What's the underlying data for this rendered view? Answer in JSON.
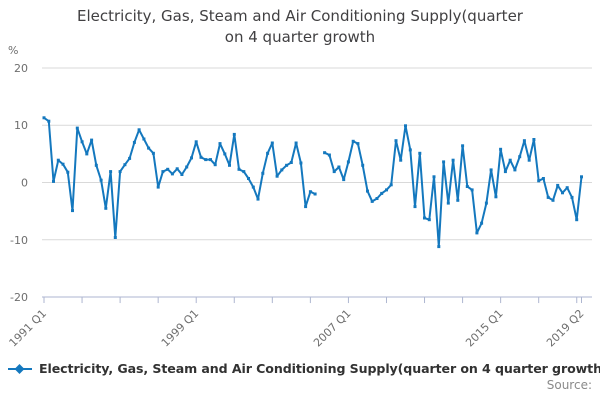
{
  "title": {
    "line1": "Electricity, Gas, Steam and Air Conditioning Supply(quarter",
    "line2": "on 4 quarter growth"
  },
  "y_axis": {
    "unit": "%",
    "ticks": [
      20,
      10,
      0,
      -10,
      -20
    ],
    "min": -20,
    "max": 20
  },
  "x_axis": {
    "labeled_ticks": [
      "1991 Q1",
      "1999 Q1",
      "2007 Q1",
      "2015 Q1",
      "2019 Q2"
    ]
  },
  "legend": {
    "label": "Electricity, Gas, Steam and Air Conditioning Supply(quarter on 4 quarter growth"
  },
  "source": {
    "label": "Source:"
  },
  "colors": {
    "line": "#1478be",
    "grid": "#d9d9d9",
    "axis": "#aeb6d0",
    "muted_text": "#6e6e6e",
    "title_text": "#414042"
  },
  "chart_data": {
    "type": "line",
    "title": "Electricity, Gas, Steam and Air Conditioning Supply(quarter on 4 quarter growth",
    "ylabel": "%",
    "ylim": [
      -20,
      20
    ],
    "grid": "horizontal",
    "legend_position": "bottom-left",
    "frequency": "quarterly",
    "x_start": "1991 Q1",
    "x_end": "2019 Q2",
    "tick_every_quarters": 8,
    "label_every_quarters": 32,
    "note": "null value = visible gap in the series",
    "values": [
      11.3,
      10.7,
      0.2,
      3.9,
      3.2,
      1.8,
      -4.9,
      9.5,
      7.1,
      5.0,
      7.4,
      3.0,
      0.4,
      -4.5,
      1.9,
      -9.6,
      1.9,
      3.1,
      4.2,
      7.0,
      9.2,
      7.6,
      6.0,
      5.1,
      -0.8,
      1.9,
      2.3,
      1.5,
      2.4,
      1.4,
      2.7,
      4.3,
      7.1,
      4.4,
      4.0,
      4.0,
      3.1,
      6.8,
      5.0,
      3.0,
      8.4,
      2.3,
      1.9,
      0.7,
      -0.8,
      -2.9,
      1.6,
      5.1,
      6.9,
      1.1,
      2.2,
      3.0,
      3.5,
      6.9,
      3.4,
      -4.2,
      -1.6,
      -2.0,
      null,
      5.2,
      4.8,
      1.9,
      2.7,
      0.5,
      3.6,
      7.2,
      6.8,
      3.0,
      -1.5,
      -3.3,
      -2.8,
      -1.9,
      -1.3,
      -0.4,
      7.3,
      3.9,
      9.9,
      5.7,
      -4.2,
      5.1,
      -6.2,
      -6.5,
      1.0,
      -11.2,
      3.6,
      -3.6,
      3.9,
      -3.1,
      6.4,
      -0.7,
      -1.3,
      -8.8,
      -7.1,
      -3.6,
      2.2,
      -2.5,
      5.8,
      1.9,
      3.9,
      2.2,
      4.5,
      7.3,
      3.9,
      7.5,
      0.3,
      0.7,
      -2.6,
      -3.1,
      -0.5,
      -1.8,
      -0.9,
      -2.6,
      -6.5,
      1.0
    ]
  }
}
